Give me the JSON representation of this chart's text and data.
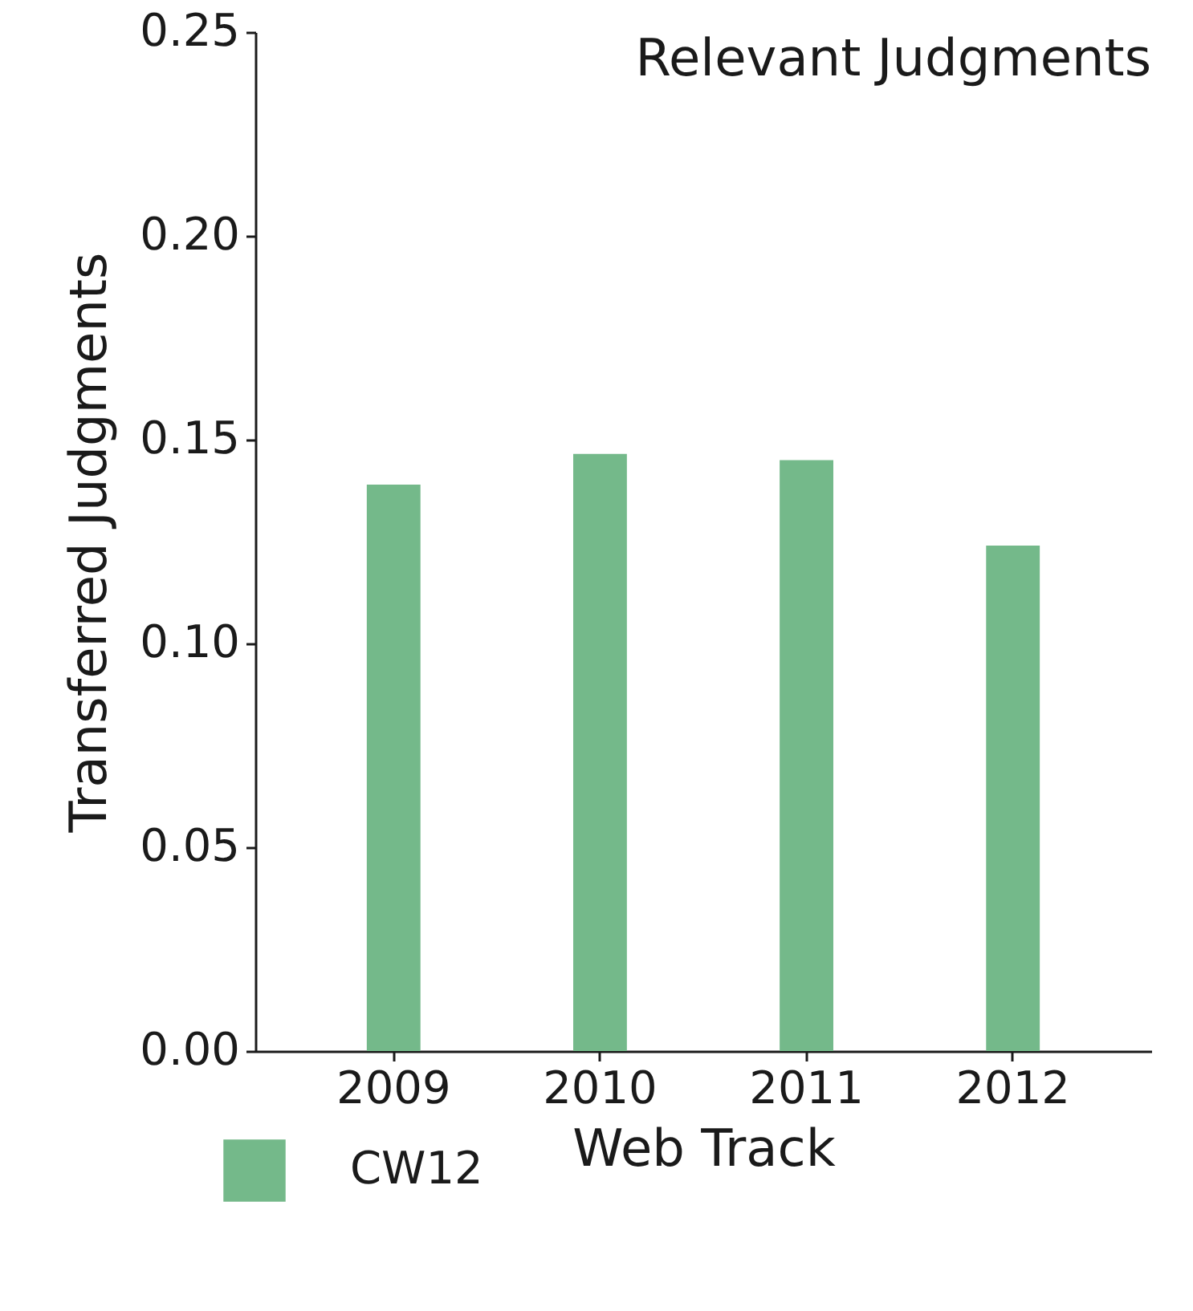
{
  "chart_data": {
    "type": "bar",
    "title": "Relevant Judgments",
    "xlabel": "Web Track",
    "ylabel": "Transferred Judgments",
    "categories": [
      "2009",
      "2010",
      "2011",
      "2012"
    ],
    "series": [
      {
        "name": "CW12",
        "color": "#74b98a",
        "values": [
          0.139,
          0.1465,
          0.145,
          0.124
        ]
      }
    ],
    "ylim": [
      0,
      0.25
    ],
    "yticks": [
      {
        "value": 0,
        "label": "0.00"
      },
      {
        "value": 0.05,
        "label": "0.05"
      },
      {
        "value": 0.1,
        "label": "0.10"
      },
      {
        "value": 0.15,
        "label": "0.15"
      },
      {
        "value": 0.2,
        "label": "0.20"
      },
      {
        "value": 0.25,
        "label": "0.25"
      }
    ],
    "grid": false,
    "legend": "bottom"
  }
}
